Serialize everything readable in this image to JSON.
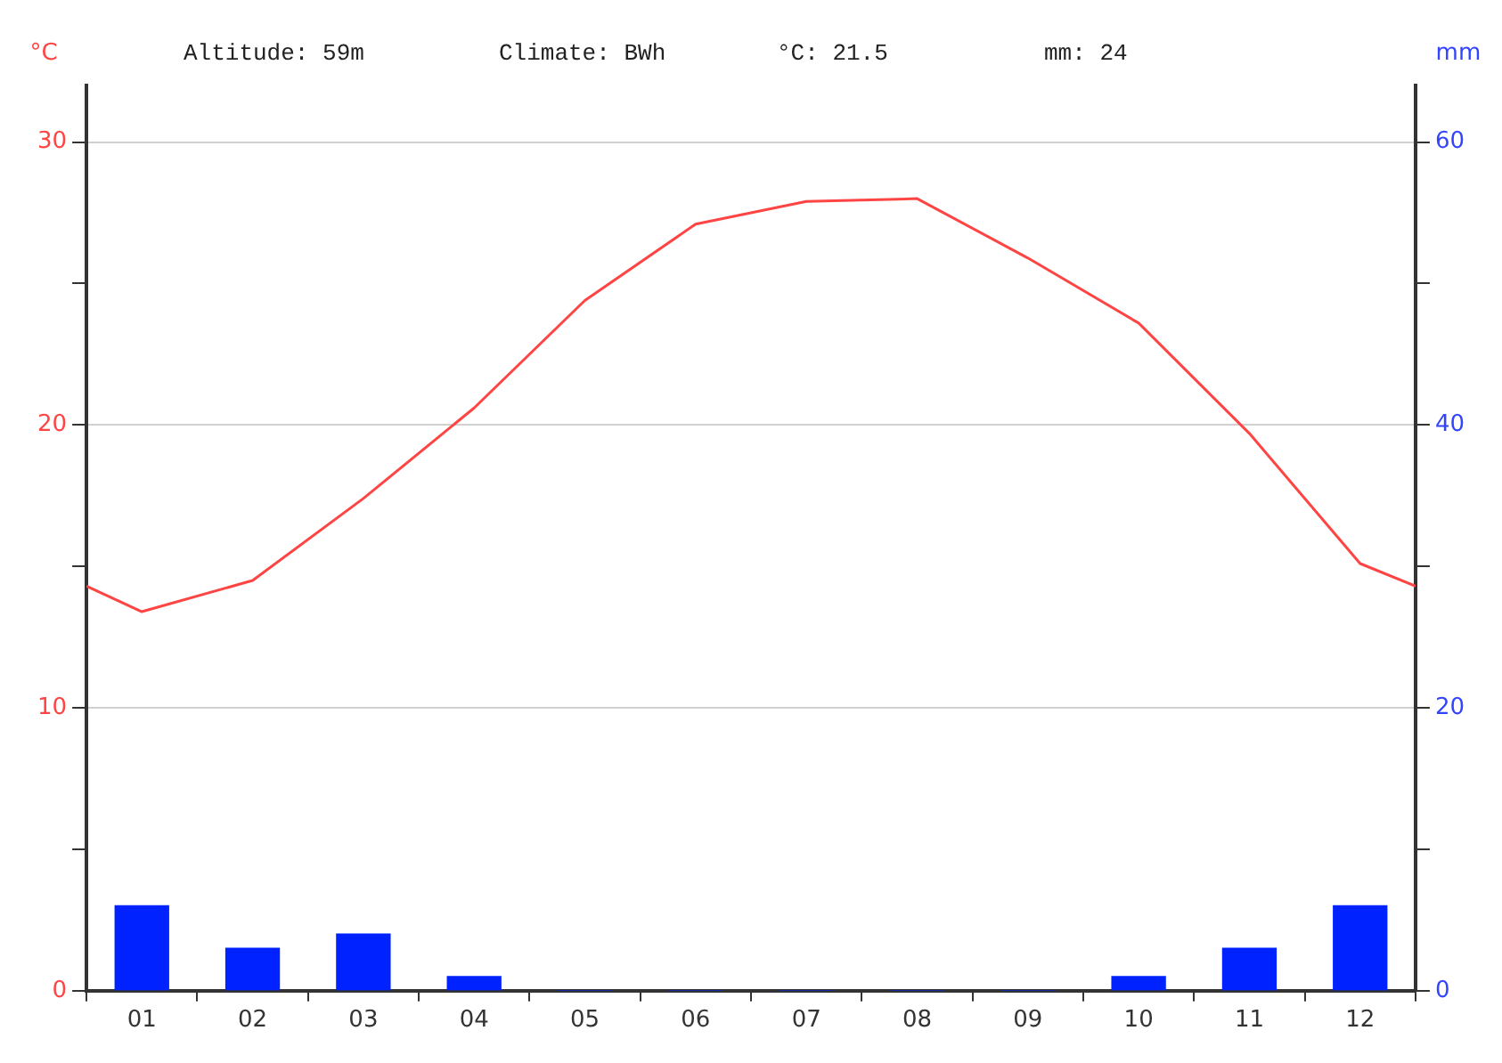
{
  "chart_data": {
    "type": "line",
    "ylabel": "°C",
    "y2label": "mm",
    "annotations": [
      "Altitude: 59m",
      "Climate: BWh",
      "°C: 21.5",
      "mm: 24"
    ],
    "series": [
      {
        "color": "#ff4444",
        "x": [
          0.5,
          1,
          2,
          3,
          4,
          5,
          6,
          7,
          8,
          9,
          10,
          11,
          12,
          12.5
        ],
        "values": [
          14.3,
          13.4,
          14.5,
          17.4,
          20.6,
          24.4,
          27.1,
          27.9,
          28.0,
          25.9,
          23.6,
          19.7,
          15.1,
          14.3
        ]
      },
      {
        "type": "bar",
        "axis": "y2",
        "color": "#0022ff",
        "x": [
          1,
          2,
          3,
          4,
          5,
          6,
          7,
          8,
          9,
          10,
          11,
          12
        ],
        "values": [
          6,
          3,
          4,
          1,
          0,
          0,
          0,
          0,
          0,
          1,
          3,
          6
        ]
      }
    ],
    "xlim": [
      0.5,
      12.5
    ],
    "xticks": [
      {
        "value": 1,
        "label": "01"
      },
      {
        "value": 2,
        "label": "02"
      },
      {
        "value": 3,
        "label": "03"
      },
      {
        "value": 4,
        "label": "04"
      },
      {
        "value": 5,
        "label": "05"
      },
      {
        "value": 6,
        "label": "06"
      },
      {
        "value": 7,
        "label": "07"
      },
      {
        "value": 8,
        "label": "08"
      },
      {
        "value": 9,
        "label": "09"
      },
      {
        "value": 10,
        "label": "10"
      },
      {
        "value": 11,
        "label": "11"
      },
      {
        "value": 12,
        "label": "12"
      }
    ],
    "ylim": [
      0,
      32
    ],
    "yticks": [
      0,
      {
        "value": 5,
        "label": null
      },
      10,
      {
        "value": 15,
        "label": null
      },
      20,
      {
        "value": 25,
        "label": null
      },
      30
    ],
    "y2lim": [
      0,
      64
    ],
    "y2ticks": [
      0,
      {
        "value": 10,
        "label": null
      },
      20,
      {
        "value": 30,
        "label": null
      },
      40,
      {
        "value": 50,
        "label": null
      },
      60
    ],
    "grid": "y",
    "marker": "none",
    "line_style": "solid"
  }
}
